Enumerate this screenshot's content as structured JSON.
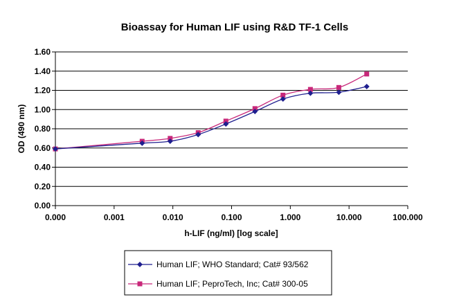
{
  "chart_data": {
    "type": "line",
    "title": "Bioassay for Human LIF using R&D TF-1  Cells",
    "xlabel": "h-LIF (ng/ml) [log scale]",
    "ylabel": "OD (490 nm)",
    "x_scale": "log",
    "x_tick_labels": [
      "0.000",
      "0.001",
      "0.010",
      "0.100",
      "1.000",
      "10.000",
      "100.000"
    ],
    "y_tick_labels": [
      "0.00",
      "0.20",
      "0.40",
      "0.60",
      "0.80",
      "1.00",
      "1.20",
      "1.40",
      "1.60"
    ],
    "ylim": [
      0,
      1.6
    ],
    "grid": "horizontal",
    "legend_position": "bottom",
    "series": [
      {
        "name": "Human LIF; WHO Standard; Cat# 93/562",
        "color": "#1f1f8f",
        "marker": "diamond",
        "x": [
          0.0001,
          0.003,
          0.009,
          0.027,
          0.08,
          0.25,
          0.75,
          2.2,
          6.7,
          20
        ],
        "y": [
          0.59,
          0.65,
          0.67,
          0.74,
          0.85,
          0.98,
          1.11,
          1.17,
          1.18,
          1.24
        ]
      },
      {
        "name": "Human LIF; PeproTech, Inc; Cat# 300-05",
        "color": "#c8287a",
        "marker": "square",
        "x": [
          0.0001,
          0.003,
          0.009,
          0.027,
          0.08,
          0.25,
          0.75,
          2.2,
          6.7,
          20
        ],
        "y": [
          0.59,
          0.67,
          0.7,
          0.76,
          0.88,
          1.01,
          1.15,
          1.21,
          1.23,
          1.37
        ]
      }
    ]
  }
}
